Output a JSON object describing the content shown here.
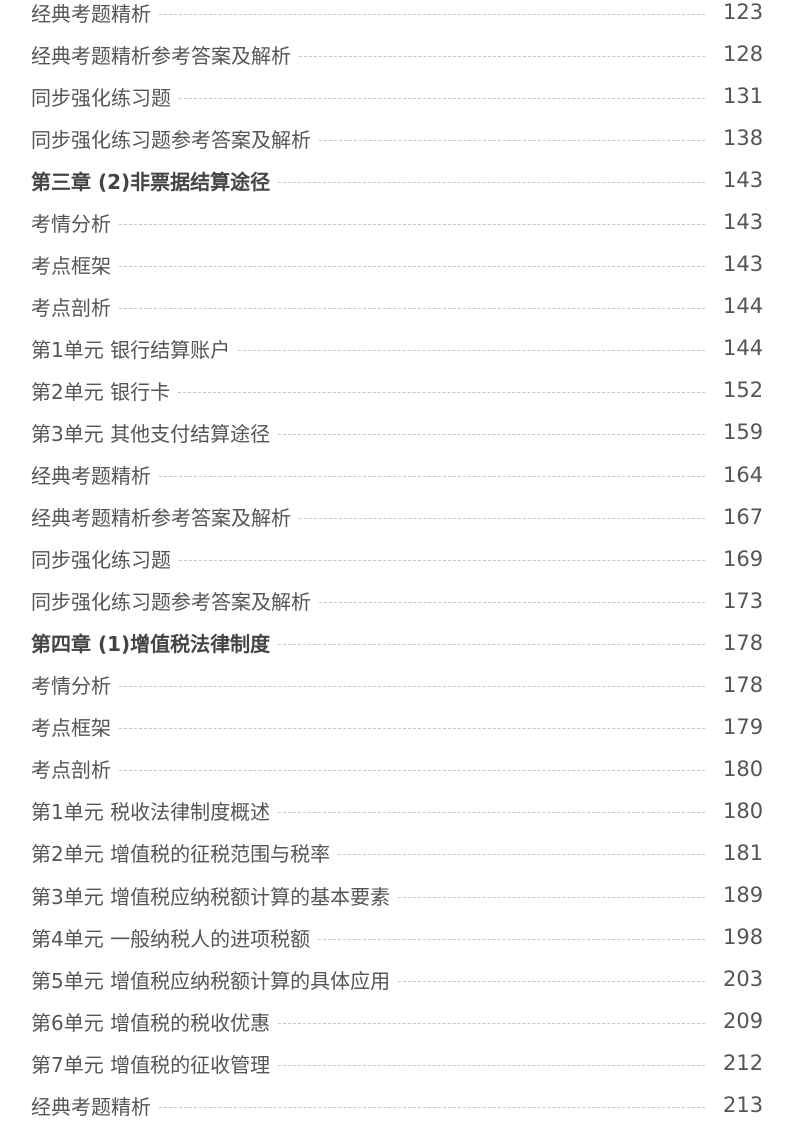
{
  "toc": [
    {
      "title": "经典考题精析",
      "page": "123",
      "bold": false
    },
    {
      "title": "经典考题精析参考答案及解析",
      "page": "128",
      "bold": false
    },
    {
      "title": "同步强化练习题",
      "page": "131",
      "bold": false
    },
    {
      "title": "同步强化练习题参考答案及解析",
      "page": "138",
      "bold": false
    },
    {
      "title": "第三章 (2)非票据结算途径",
      "page": "143",
      "bold": true
    },
    {
      "title": "考情分析",
      "page": "143",
      "bold": false
    },
    {
      "title": "考点框架",
      "page": "143",
      "bold": false
    },
    {
      "title": "考点剖析",
      "page": "144",
      "bold": false
    },
    {
      "title": "第1单元 银行结算账户",
      "page": "144",
      "bold": false
    },
    {
      "title": "第2单元 银行卡",
      "page": "152",
      "bold": false
    },
    {
      "title": "第3单元 其他支付结算途径",
      "page": "159",
      "bold": false
    },
    {
      "title": "经典考题精析",
      "page": "164",
      "bold": false
    },
    {
      "title": "经典考题精析参考答案及解析",
      "page": "167",
      "bold": false
    },
    {
      "title": "同步强化练习题",
      "page": "169",
      "bold": false
    },
    {
      "title": "同步强化练习题参考答案及解析",
      "page": "173",
      "bold": false
    },
    {
      "title": "第四章 (1)增值税法律制度",
      "page": "178",
      "bold": true
    },
    {
      "title": "考情分析",
      "page": "178",
      "bold": false
    },
    {
      "title": "考点框架",
      "page": "179",
      "bold": false
    },
    {
      "title": "考点剖析",
      "page": "180",
      "bold": false
    },
    {
      "title": "第1单元 税收法律制度概述",
      "page": "180",
      "bold": false
    },
    {
      "title": "第2单元 增值税的征税范围与税率",
      "page": "181",
      "bold": false
    },
    {
      "title": "第3单元 增值税应纳税额计算的基本要素",
      "page": "189",
      "bold": false
    },
    {
      "title": "第4单元 一般纳税人的进项税额",
      "page": "198",
      "bold": false
    },
    {
      "title": "第5单元 增值税应纳税额计算的具体应用",
      "page": "203",
      "bold": false
    },
    {
      "title": "第6单元 增值税的税收优惠",
      "page": "209",
      "bold": false
    },
    {
      "title": "第7单元 增值税的征收管理",
      "page": "212",
      "bold": false
    },
    {
      "title": "经典考题精析",
      "page": "213",
      "bold": false
    }
  ]
}
